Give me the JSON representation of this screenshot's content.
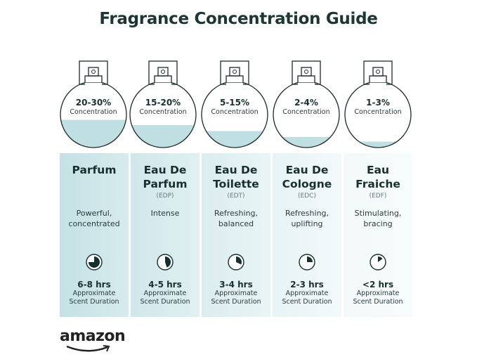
{
  "title": "Fragrance Concentration Guide",
  "concentration_label": "Concentration",
  "duration_label_1": "Approximate",
  "duration_label_2": "Scent Duration",
  "colors": {
    "liquid": "#bfdfe2",
    "panel_dark": "#c7e2e5",
    "panel_light": "#eef7f8",
    "ink": "#17302f"
  },
  "types": [
    {
      "name_1": "Parfum",
      "name_2": "",
      "abbr": "",
      "concentration": "20-30%",
      "fill_level": 0.42,
      "desc_1": "Powerful,",
      "desc_2": "concentrated",
      "duration": "6-8 hrs",
      "clock_fraction": 0.75
    },
    {
      "name_1": "Eau De",
      "name_2": "Parfum",
      "abbr": "(EDP)",
      "concentration": "15-20%",
      "fill_level": 0.34,
      "desc_1": "Intense",
      "desc_2": "",
      "duration": "4-5 hrs",
      "clock_fraction": 0.45
    },
    {
      "name_1": "Eau De",
      "name_2": "Toilette",
      "abbr": "(EDT)",
      "concentration": "5-15%",
      "fill_level": 0.25,
      "desc_1": "Refreshing,",
      "desc_2": "balanced",
      "duration": "3-4 hrs",
      "clock_fraction": 0.32
    },
    {
      "name_1": "Eau De",
      "name_2": "Cologne",
      "abbr": "(EDC)",
      "concentration": "2-4%",
      "fill_level": 0.16,
      "desc_1": "Refreshing,",
      "desc_2": "uplifting",
      "duration": "2-3 hrs",
      "clock_fraction": 0.25
    },
    {
      "name_1": "Eau",
      "name_2": "Fraiche",
      "abbr": "(EDF)",
      "concentration": "1-3%",
      "fill_level": 0.09,
      "desc_1": "Stimulating,",
      "desc_2": "bracing",
      "duration": "<2 hrs",
      "clock_fraction": 0.15
    }
  ],
  "logo": "amazon"
}
